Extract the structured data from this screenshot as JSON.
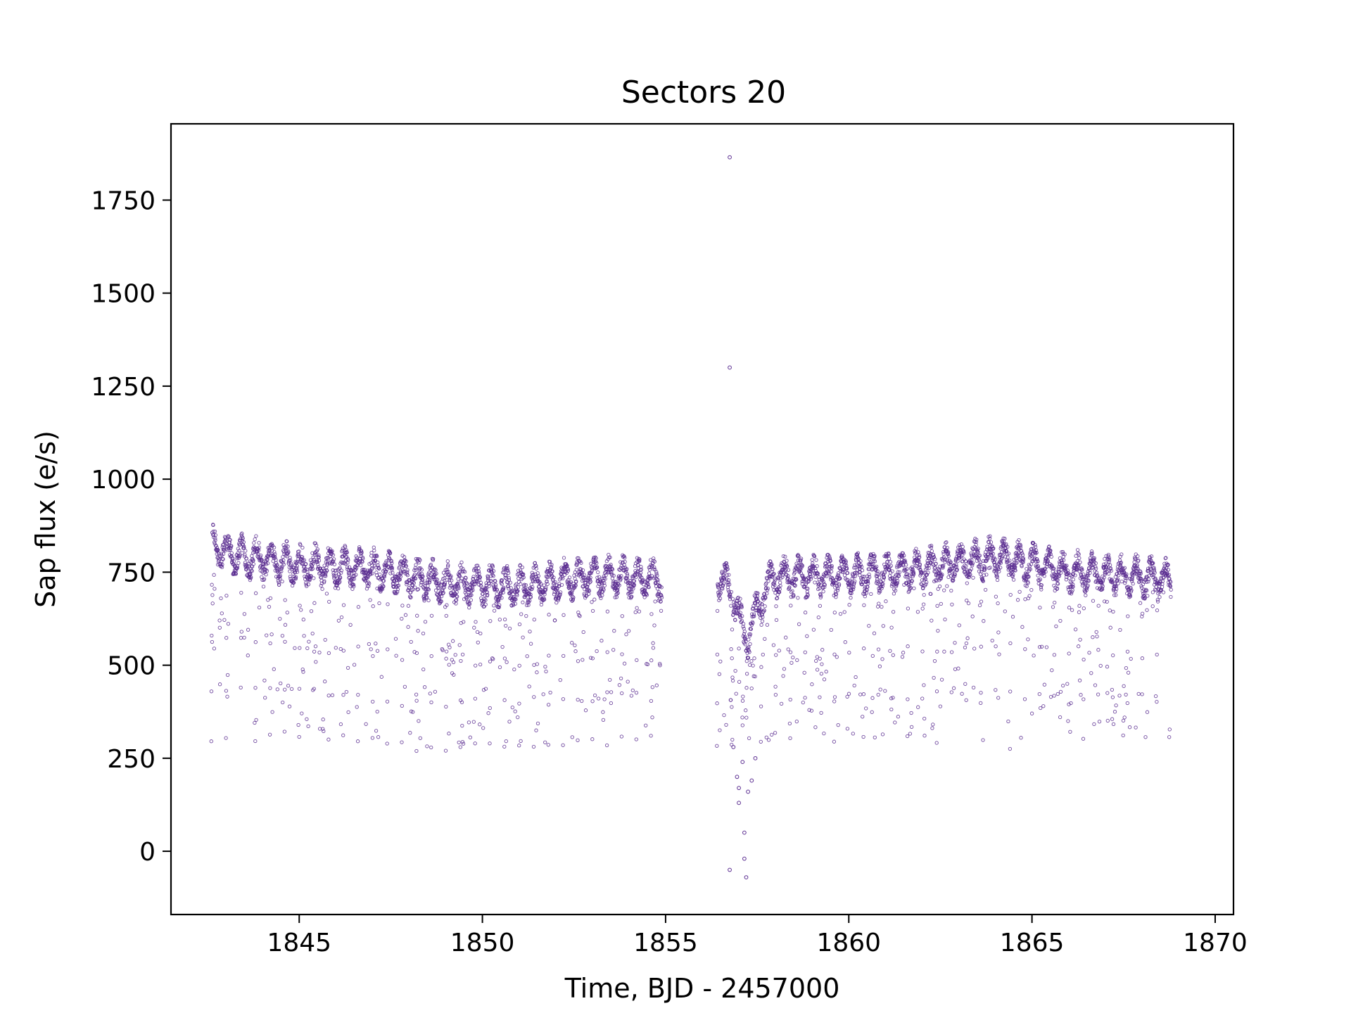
{
  "chart_data": {
    "type": "scatter",
    "title": "Sectors 20",
    "xlabel": "Time, BJD - 2457000",
    "ylabel": "Sap flux (e/s)",
    "xlim": [
      1841.5,
      1870.5
    ],
    "ylim": [
      -170,
      1955
    ],
    "x_ticks": [
      1845,
      1850,
      1855,
      1860,
      1865,
      1870
    ],
    "y_ticks": [
      0,
      250,
      500,
      750,
      1000,
      1250,
      1500,
      1750
    ],
    "grid": false,
    "marker_color": "#5b2d91",
    "segments": [
      {
        "x_start": 1842.6,
        "x_end": 1854.9
      },
      {
        "x_start": 1856.4,
        "x_end": 1868.8
      }
    ],
    "envelope_upper": [
      [
        1842.6,
        820
      ],
      [
        1843.5,
        790
      ],
      [
        1845,
        770
      ],
      [
        1847,
        760
      ],
      [
        1849,
        720
      ],
      [
        1851,
        710
      ],
      [
        1853,
        740
      ],
      [
        1854.9,
        730
      ],
      [
        1856.4,
        740
      ],
      [
        1856.8,
        700
      ],
      [
        1857.2,
        560
      ],
      [
        1857.6,
        680
      ],
      [
        1858,
        740
      ],
      [
        1860,
        740
      ],
      [
        1862,
        760
      ],
      [
        1864,
        790
      ],
      [
        1866,
        750
      ],
      [
        1868.8,
        730
      ]
    ],
    "envelope_lower": [
      [
        1842.6,
        310
      ],
      [
        1845,
        310
      ],
      [
        1848,
        280
      ],
      [
        1851,
        290
      ],
      [
        1854.9,
        300
      ],
      [
        1856.4,
        290
      ],
      [
        1858,
        300
      ],
      [
        1862,
        300
      ],
      [
        1865,
        280
      ],
      [
        1868.8,
        300
      ]
    ],
    "outliers": [
      {
        "x": 1856.75,
        "y": 1865
      },
      {
        "x": 1856.75,
        "y": 1300
      },
      {
        "x": 1856.75,
        "y": -50
      },
      {
        "x": 1857.2,
        "y": -70
      },
      {
        "x": 1857.15,
        "y": 50
      },
      {
        "x": 1857.15,
        "y": -20
      },
      {
        "x": 1857.0,
        "y": 130
      },
      {
        "x": 1857.0,
        "y": 170
      },
      {
        "x": 1856.95,
        "y": 200
      },
      {
        "x": 1857.1,
        "y": 240
      },
      {
        "x": 1857.45,
        "y": 250
      },
      {
        "x": 1857.35,
        "y": 190
      },
      {
        "x": 1856.85,
        "y": 280
      },
      {
        "x": 1857.25,
        "y": 160
      }
    ]
  }
}
